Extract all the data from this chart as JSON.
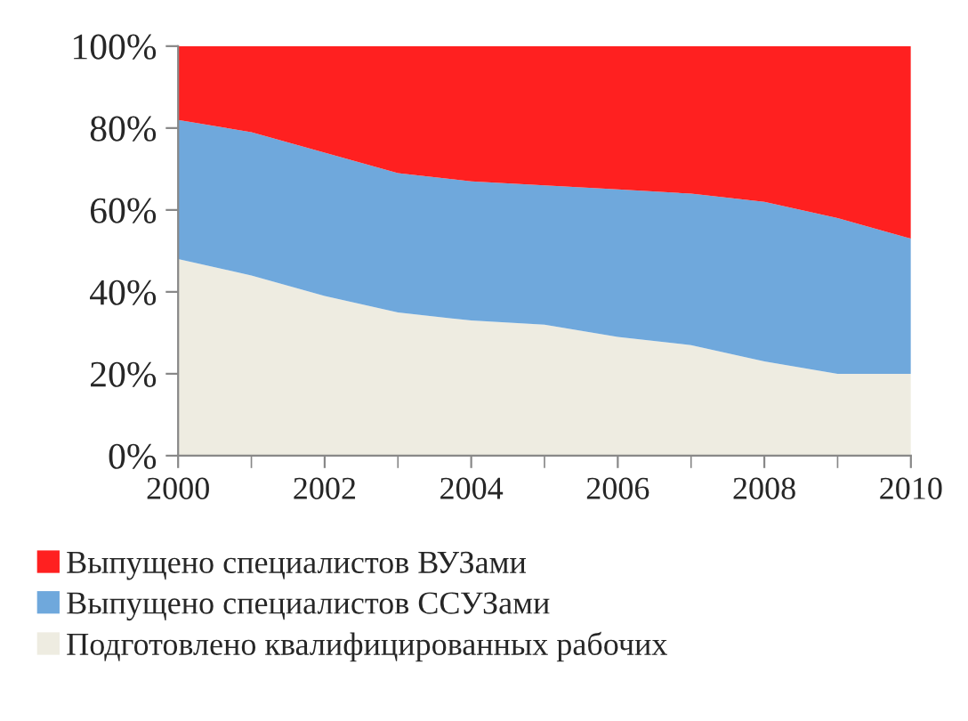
{
  "chart_data": {
    "type": "area",
    "stacked": true,
    "x": [
      2000,
      2001,
      2002,
      2003,
      2004,
      2005,
      2006,
      2007,
      2008,
      2009,
      2010
    ],
    "series": [
      {
        "name": "Подготовлено квалифицированных рабочих",
        "color": "#eeece1",
        "values": [
          48,
          44,
          39,
          35,
          33,
          32,
          29,
          27,
          23,
          20,
          20
        ]
      },
      {
        "name": "Выпущено специалистов ССУЗами",
        "color": "#6fa8dc",
        "values": [
          34,
          35,
          35,
          34,
          34,
          34,
          36,
          37,
          39,
          38,
          33
        ]
      },
      {
        "name": "Выпущено специалистов ВУЗами",
        "color": "#ff2020",
        "values": [
          18,
          21,
          26,
          31,
          33,
          34,
          35,
          36,
          38,
          42,
          47
        ]
      }
    ],
    "xlim": [
      2000,
      2010
    ],
    "xticks": [
      2000,
      2002,
      2004,
      2006,
      2008,
      2010
    ],
    "ylim": [
      0,
      100
    ],
    "yticks": [
      {
        "value": 0,
        "label": "0%"
      },
      {
        "value": 20,
        "label": "20%"
      },
      {
        "value": 40,
        "label": "40%"
      },
      {
        "value": 60,
        "label": "60%"
      },
      {
        "value": 80,
        "label": "80%"
      },
      {
        "value": 100,
        "label": "100%"
      }
    ],
    "grid": false,
    "legend": "bottom"
  }
}
